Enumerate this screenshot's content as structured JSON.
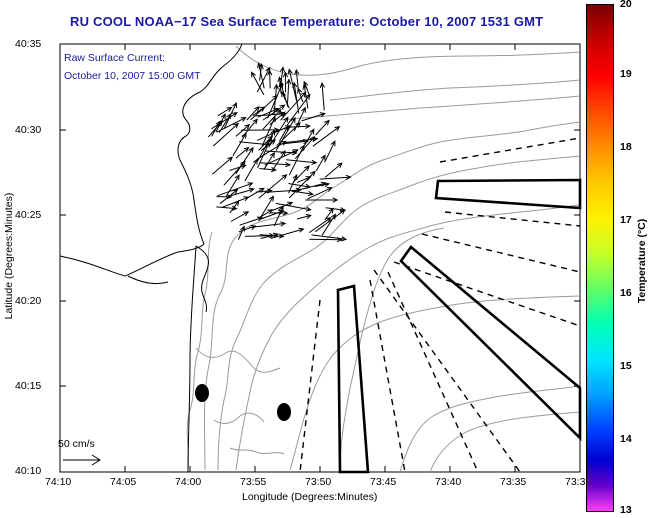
{
  "title": "RU COOL  NOAA−17  Sea Surface Temperature:  October 10, 2007 1531 GMT",
  "inset": {
    "line1": "Raw Surface Current:",
    "line2": "October 10, 2007 15:00 GMT"
  },
  "scale": {
    "label": "50 cm/s"
  },
  "axes": {
    "xlabel": "Longitude (Degrees:Minutes)",
    "ylabel": "Latitude (Degrees:Minutes)",
    "xticks": [
      "74:10",
      "74:05",
      "74:00",
      "73:55",
      "73:50",
      "73:45",
      "73:40",
      "73:35",
      "73:3"
    ],
    "yticks": [
      "40:35",
      "40:30",
      "40:25",
      "40:20",
      "40:15",
      "40:10"
    ]
  },
  "colorbar": {
    "label": "Temperature (°C)",
    "ticks": [
      "20",
      "19",
      "18",
      "17",
      "16",
      "15",
      "14",
      "13"
    ]
  },
  "colors": {
    "title": "#1a1aa0",
    "coast": "#000000",
    "contour": "#999999"
  }
}
